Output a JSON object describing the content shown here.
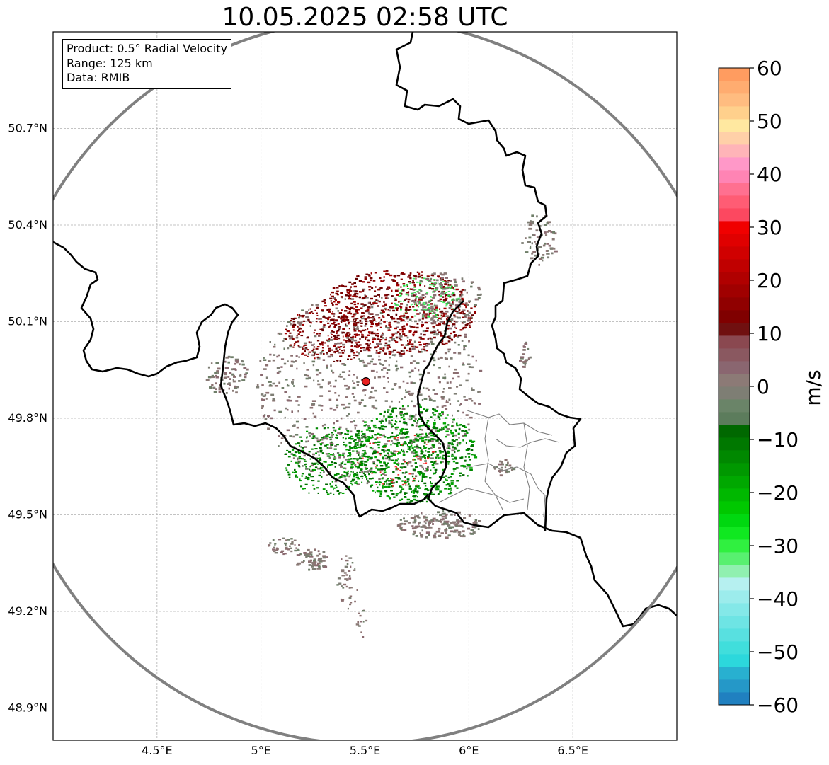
{
  "title": "10.05.2025 02:58 UTC",
  "info_box": {
    "product": "Product: 0.5° Radial Velocity",
    "range": "Range: 125 km",
    "data": "Data: RMIB"
  },
  "map": {
    "lon_range": [
      4.0,
      7.0
    ],
    "lat_range": [
      48.8,
      51.0
    ],
    "lon_ticks": [
      {
        "value": 4.5,
        "label": "4.5°E"
      },
      {
        "value": 5.0,
        "label": "5°E"
      },
      {
        "value": 5.5,
        "label": "5.5°E"
      },
      {
        "value": 6.0,
        "label": "6°E"
      },
      {
        "value": 6.5,
        "label": "6.5°E"
      }
    ],
    "lat_ticks": [
      {
        "value": 50.7,
        "label": "50.7°N"
      },
      {
        "value": 50.4,
        "label": "50.4°N"
      },
      {
        "value": 50.1,
        "label": "50.1°N"
      },
      {
        "value": 49.8,
        "label": "49.8°N"
      },
      {
        "value": 49.5,
        "label": "49.5°N"
      },
      {
        "value": 49.2,
        "label": "49.2°N"
      },
      {
        "value": 48.9,
        "label": "48.9°N"
      }
    ],
    "radar_site": {
      "lon": 5.505,
      "lat": 49.914
    },
    "range_ring_km": 125,
    "colors": {
      "background": "#ffffff",
      "grid": "#b0b0b0",
      "border": "#000000",
      "admin_border": "#808080",
      "range_ring": "#808080",
      "radar_site": "#e82020"
    }
  },
  "colorbar": {
    "label": "m/s",
    "vmin": -60,
    "vmax": 60,
    "ticks": [
      {
        "value": 60,
        "label": "60"
      },
      {
        "value": 50,
        "label": "50"
      },
      {
        "value": 40,
        "label": "40"
      },
      {
        "value": 30,
        "label": "30"
      },
      {
        "value": 20,
        "label": "20"
      },
      {
        "value": 10,
        "label": "10"
      },
      {
        "value": 0,
        "label": "0"
      },
      {
        "value": -10,
        "label": "−10"
      },
      {
        "value": -20,
        "label": "−20"
      },
      {
        "value": -30,
        "label": "−30"
      },
      {
        "value": -40,
        "label": "−40"
      },
      {
        "value": -50,
        "label": "−50"
      },
      {
        "value": -60,
        "label": "−60"
      }
    ],
    "bins": [
      "#2080c0",
      "#2598c8",
      "#28b0d0",
      "#2cd8dc",
      "#40dedc",
      "#58e0e0",
      "#6ee4e4",
      "#84e8e8",
      "#9cecec",
      "#b6f0f0",
      "#90f0b0",
      "#58f070",
      "#30f040",
      "#10e820",
      "#00d810",
      "#00c800",
      "#00b800",
      "#00a800",
      "#009800",
      "#008800",
      "#007800",
      "#006800",
      "#5c7c5c",
      "#6a8468",
      "#7e7e74",
      "#8c7a76",
      "#8a6670",
      "#8a5860",
      "#8a4850",
      "#701010",
      "#800000",
      "#900000",
      "#a00000",
      "#b00000",
      "#c00000",
      "#d00000",
      "#e00000",
      "#f00000",
      "#fc4860",
      "#ff5c74",
      "#ff7090",
      "#ff84b4",
      "#ff98c8",
      "#ffb4b8",
      "#ffd0a8",
      "#ffe8a0",
      "#ffd08c",
      "#ffbc80",
      "#ffac70",
      "#ff9c60"
    ]
  }
}
